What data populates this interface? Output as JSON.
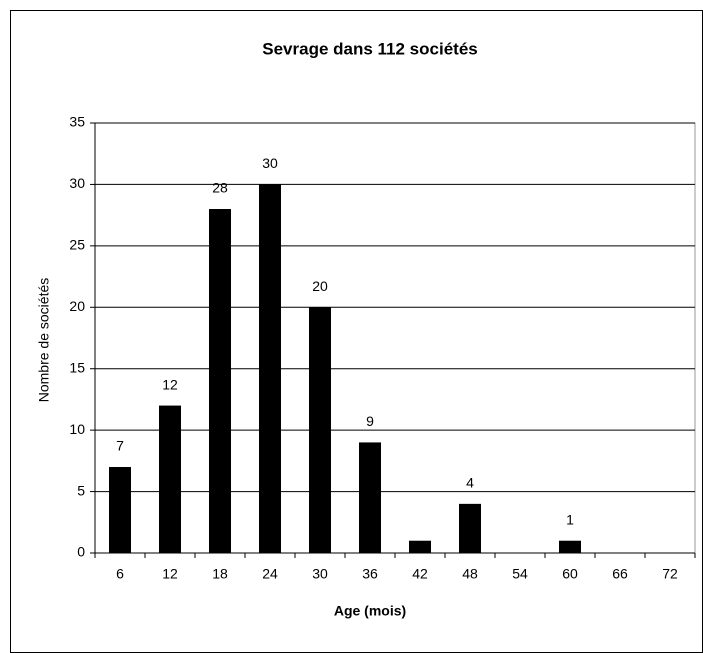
{
  "chart_data": {
    "type": "bar",
    "title": "Sevrage dans 112 sociétés",
    "x_label": "Age (mois)",
    "y_label": "Nombre de sociétés",
    "categories": [
      "6",
      "12",
      "18",
      "24",
      "30",
      "36",
      "42",
      "48",
      "54",
      "60",
      "66",
      "72"
    ],
    "values": [
      7,
      12,
      28,
      30,
      20,
      9,
      1,
      4,
      0,
      1,
      0,
      0
    ],
    "value_labels": [
      "7",
      "12",
      "28",
      "30",
      "20",
      "9",
      null,
      "4",
      null,
      "1",
      null,
      null
    ],
    "color": "#000000",
    "ylim": [
      0,
      35
    ],
    "yticks": [
      0,
      5,
      10,
      15,
      20,
      25,
      30,
      35
    ],
    "grid": true
  }
}
